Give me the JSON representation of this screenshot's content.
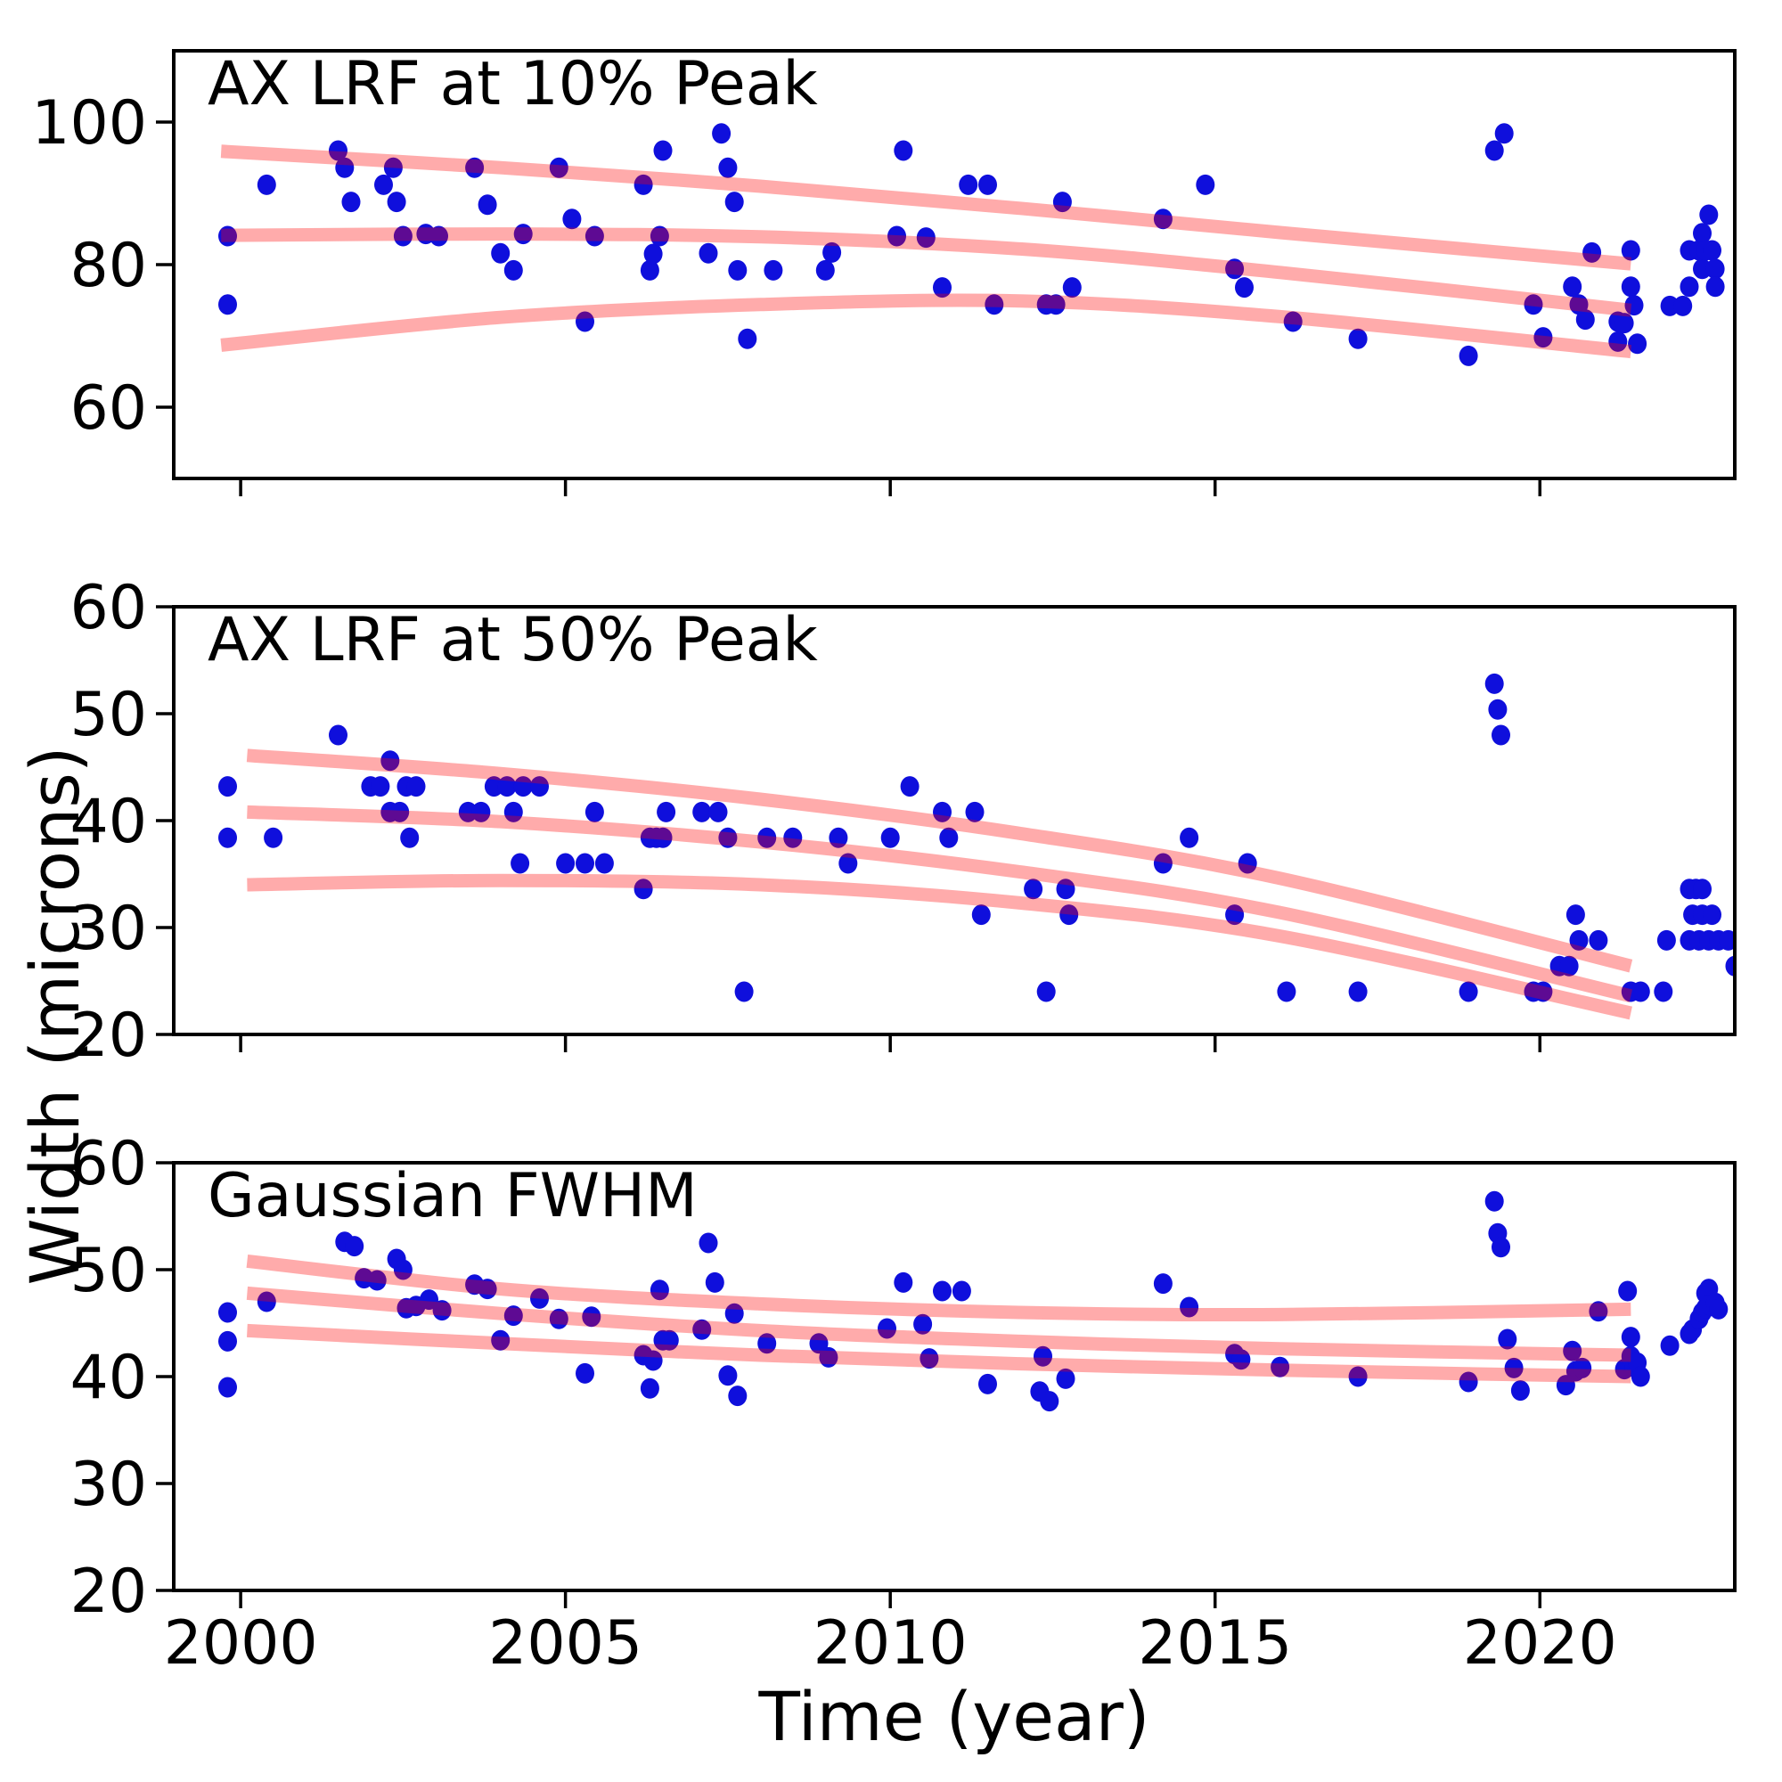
{
  "figure": {
    "background": "#ffffff",
    "dot_color": "#0f0fdc",
    "fit_line_color": "#ff0000",
    "fit_line_opacity": 0.33,
    "title_color": "#1414d6",
    "axis_color": "#000000"
  },
  "xlabel": "Time (year)",
  "ylabel": "Width (microns)",
  "x_ticks": [
    2000,
    2005,
    2010,
    2015,
    2020
  ],
  "chart_data": [
    {
      "type": "scatter",
      "title": "AX LRF at 10% Peak",
      "xlim": [
        1998.97,
        2023.0
      ],
      "ylim": [
        50,
        110
      ],
      "yticks": [
        60,
        80,
        100
      ],
      "grid": false,
      "points": [
        [
          1999.8,
          84
        ],
        [
          1999.8,
          74.4
        ],
        [
          2000.4,
          91.2
        ],
        [
          2001.5,
          96
        ],
        [
          2001.6,
          93.6
        ],
        [
          2001.7,
          88.8
        ],
        [
          2002.2,
          91.2
        ],
        [
          2002.35,
          93.6
        ],
        [
          2002.4,
          88.8
        ],
        [
          2002.5,
          84
        ],
        [
          2002.85,
          84.3
        ],
        [
          2003.05,
          84
        ],
        [
          2003.6,
          93.6
        ],
        [
          2003.8,
          88.4
        ],
        [
          2004.0,
          81.6
        ],
        [
          2004.2,
          79.2
        ],
        [
          2004.35,
          84.3
        ],
        [
          2004.9,
          93.6
        ],
        [
          2005.1,
          86.4
        ],
        [
          2005.3,
          72
        ],
        [
          2005.45,
          84
        ],
        [
          2006.2,
          91.2
        ],
        [
          2006.3,
          79.2
        ],
        [
          2006.35,
          81.5
        ],
        [
          2006.45,
          84
        ],
        [
          2006.5,
          96
        ],
        [
          2007.2,
          81.6
        ],
        [
          2007.4,
          98.4
        ],
        [
          2007.5,
          93.6
        ],
        [
          2007.6,
          88.8
        ],
        [
          2007.65,
          79.2
        ],
        [
          2007.8,
          69.6
        ],
        [
          2008.2,
          79.2
        ],
        [
          2009.0,
          79.2
        ],
        [
          2009.1,
          81.7
        ],
        [
          2010.1,
          84
        ],
        [
          2010.2,
          96
        ],
        [
          2010.55,
          83.8
        ],
        [
          2010.8,
          76.8
        ],
        [
          2011.2,
          91.2
        ],
        [
          2011.5,
          91.2
        ],
        [
          2011.6,
          74.4
        ],
        [
          2012.4,
          74.4
        ],
        [
          2012.55,
          74.4
        ],
        [
          2012.65,
          88.8
        ],
        [
          2012.8,
          76.8
        ],
        [
          2014.2,
          86.4
        ],
        [
          2014.85,
          91.2
        ],
        [
          2015.3,
          79.4
        ],
        [
          2015.45,
          76.8
        ],
        [
          2016.2,
          72
        ],
        [
          2017.2,
          69.6
        ],
        [
          2018.9,
          67.2
        ],
        [
          2019.3,
          96
        ],
        [
          2019.45,
          98.4
        ],
        [
          2019.9,
          74.4
        ],
        [
          2020.05,
          69.8
        ],
        [
          2020.5,
          76.9
        ],
        [
          2020.6,
          74.4
        ],
        [
          2020.7,
          72.3
        ],
        [
          2020.8,
          81.7
        ],
        [
          2021.2,
          72
        ],
        [
          2021.2,
          69.2
        ],
        [
          2021.3,
          71.8
        ],
        [
          2021.4,
          82
        ],
        [
          2021.4,
          76.9
        ],
        [
          2021.45,
          74.3
        ],
        [
          2021.5,
          68.9
        ],
        [
          2022.0,
          74.2
        ],
        [
          2022.2,
          74.2
        ],
        [
          2022.3,
          76.9
        ],
        [
          2022.3,
          82
        ],
        [
          2022.45,
          82
        ],
        [
          2022.5,
          79.4
        ],
        [
          2022.5,
          84.4
        ],
        [
          2022.55,
          82
        ],
        [
          2022.6,
          87
        ],
        [
          2022.65,
          82
        ],
        [
          2022.7,
          79.4
        ],
        [
          2022.7,
          76.9
        ]
      ],
      "fit_lines": [
        {
          "name": "upper",
          "points": [
            [
              1999.7,
              95.9
            ],
            [
              2004,
              93.6
            ],
            [
              2008,
              91.0
            ],
            [
              2012,
              87.9
            ],
            [
              2016,
              84.5
            ],
            [
              2021.4,
              80.1
            ]
          ]
        },
        {
          "name": "middle",
          "points": [
            [
              1999.7,
              84.1
            ],
            [
              2004,
              84.3
            ],
            [
              2008,
              83.9
            ],
            [
              2012,
              82.2
            ],
            [
              2016,
              78.9
            ],
            [
              2021.4,
              73.6
            ]
          ]
        },
        {
          "name": "lower",
          "points": [
            [
              1999.7,
              68.7
            ],
            [
              2004,
              72.6
            ],
            [
              2008,
              74.4
            ],
            [
              2012,
              74.9
            ],
            [
              2016,
              72.7
            ],
            [
              2021.4,
              67.8
            ]
          ]
        }
      ]
    },
    {
      "type": "scatter",
      "title": "AX LRF at 50% Peak",
      "xlim": [
        1998.97,
        2023.0
      ],
      "ylim": [
        20,
        60
      ],
      "yticks": [
        20,
        30,
        40,
        50,
        60
      ],
      "grid": false,
      "points": [
        [
          1999.8,
          43.2
        ],
        [
          1999.8,
          38.4
        ],
        [
          2000.5,
          38.4
        ],
        [
          2001.5,
          48
        ],
        [
          2002.0,
          43.2
        ],
        [
          2002.15,
          43.2
        ],
        [
          2002.3,
          45.6
        ],
        [
          2002.3,
          40.8
        ],
        [
          2002.45,
          40.8
        ],
        [
          2002.55,
          43.2
        ],
        [
          2002.7,
          43.2
        ],
        [
          2002.6,
          38.4
        ],
        [
          2003.5,
          40.8
        ],
        [
          2003.7,
          40.8
        ],
        [
          2003.9,
          43.2
        ],
        [
          2004.1,
          43.2
        ],
        [
          2004.2,
          40.8
        ],
        [
          2004.35,
          43.2
        ],
        [
          2004.3,
          36
        ],
        [
          2004.6,
          43.2
        ],
        [
          2005.0,
          36
        ],
        [
          2005.3,
          36
        ],
        [
          2005.45,
          40.8
        ],
        [
          2005.6,
          36
        ],
        [
          2006.2,
          33.6
        ],
        [
          2006.3,
          38.4
        ],
        [
          2006.4,
          38.4
        ],
        [
          2006.5,
          38.4
        ],
        [
          2006.55,
          40.8
        ],
        [
          2007.1,
          40.8
        ],
        [
          2007.35,
          40.8
        ],
        [
          2007.5,
          38.4
        ],
        [
          2007.75,
          24
        ],
        [
          2008.1,
          38.4
        ],
        [
          2008.5,
          38.4
        ],
        [
          2009.2,
          38.4
        ],
        [
          2009.35,
          36
        ],
        [
          2010.0,
          38.4
        ],
        [
          2010.3,
          43.2
        ],
        [
          2010.8,
          40.8
        ],
        [
          2010.9,
          38.4
        ],
        [
          2011.3,
          40.8
        ],
        [
          2011.4,
          31.2
        ],
        [
          2012.2,
          33.6
        ],
        [
          2012.4,
          24
        ],
        [
          2012.7,
          33.6
        ],
        [
          2012.75,
          31.2
        ],
        [
          2014.2,
          36
        ],
        [
          2014.6,
          38.4
        ],
        [
          2015.3,
          31.2
        ],
        [
          2015.5,
          36
        ],
        [
          2016.1,
          24
        ],
        [
          2017.2,
          24
        ],
        [
          2018.9,
          24
        ],
        [
          2019.3,
          52.8
        ],
        [
          2019.35,
          50.4
        ],
        [
          2019.4,
          48
        ],
        [
          2019.9,
          24
        ],
        [
          2020.05,
          24
        ],
        [
          2020.3,
          26.4
        ],
        [
          2020.45,
          26.4
        ],
        [
          2020.55,
          31.2
        ],
        [
          2020.6,
          28.8
        ],
        [
          2020.9,
          28.8
        ],
        [
          2021.4,
          24
        ],
        [
          2021.55,
          24
        ],
        [
          2021.9,
          24
        ],
        [
          2021.95,
          28.8
        ],
        [
          2022.3,
          33.6
        ],
        [
          2022.4,
          33.6
        ],
        [
          2022.5,
          33.6
        ],
        [
          2022.35,
          31.2
        ],
        [
          2022.5,
          31.2
        ],
        [
          2022.65,
          31.2
        ],
        [
          2022.3,
          28.8
        ],
        [
          2022.45,
          28.8
        ],
        [
          2022.6,
          28.8
        ],
        [
          2022.75,
          28.8
        ],
        [
          2022.9,
          28.8
        ],
        [
          2023.0,
          26.4
        ]
      ],
      "fit_lines": [
        {
          "name": "upper",
          "points": [
            [
              2000.1,
              46.1
            ],
            [
              2004,
              44.4
            ],
            [
              2008,
              42.0
            ],
            [
              2012,
              38.8
            ],
            [
              2016,
              34.6
            ],
            [
              2021.4,
              26.4
            ]
          ]
        },
        {
          "name": "middle",
          "points": [
            [
              2000.1,
              40.8
            ],
            [
              2004,
              39.9
            ],
            [
              2008,
              38.0
            ],
            [
              2012,
              35.2
            ],
            [
              2016,
              31.4
            ],
            [
              2021.4,
              23.6
            ]
          ]
        },
        {
          "name": "lower",
          "points": [
            [
              2000.1,
              34.0
            ],
            [
              2004,
              34.4
            ],
            [
              2008,
              34.0
            ],
            [
              2012,
              32.3
            ],
            [
              2016,
              29.2
            ],
            [
              2021.4,
              22.0
            ]
          ]
        }
      ]
    },
    {
      "type": "scatter",
      "title": "Gaussian FWHM",
      "xlim": [
        1998.97,
        2023.0
      ],
      "ylim": [
        20,
        60
      ],
      "yticks": [
        20,
        30,
        40,
        50,
        60
      ],
      "grid": false,
      "points": [
        [
          1999.8,
          46
        ],
        [
          1999.8,
          43.3
        ],
        [
          1999.8,
          39
        ],
        [
          2000.4,
          47
        ],
        [
          2001.6,
          52.6
        ],
        [
          2001.75,
          52.2
        ],
        [
          2001.9,
          49.2
        ],
        [
          2002.1,
          49
        ],
        [
          2002.4,
          51
        ],
        [
          2002.5,
          50
        ],
        [
          2002.55,
          46.4
        ],
        [
          2002.7,
          46.6
        ],
        [
          2002.9,
          47.2
        ],
        [
          2003.1,
          46.2
        ],
        [
          2003.6,
          48.6
        ],
        [
          2003.8,
          48.2
        ],
        [
          2004.0,
          43.4
        ],
        [
          2004.2,
          45.7
        ],
        [
          2004.6,
          47.3
        ],
        [
          2004.9,
          45.4
        ],
        [
          2005.4,
          45.6
        ],
        [
          2005.3,
          40.3
        ],
        [
          2006.2,
          42
        ],
        [
          2006.3,
          38.9
        ],
        [
          2006.35,
          41.5
        ],
        [
          2006.45,
          48.1
        ],
        [
          2006.5,
          43.4
        ],
        [
          2006.6,
          43.4
        ],
        [
          2007.1,
          44.4
        ],
        [
          2007.2,
          52.5
        ],
        [
          2007.3,
          48.8
        ],
        [
          2007.5,
          40.1
        ],
        [
          2007.6,
          45.9
        ],
        [
          2007.65,
          38.2
        ],
        [
          2008.1,
          43.1
        ],
        [
          2008.9,
          43.1
        ],
        [
          2009.05,
          41.8
        ],
        [
          2009.95,
          44.5
        ],
        [
          2010.2,
          48.8
        ],
        [
          2010.5,
          44.9
        ],
        [
          2010.6,
          41.7
        ],
        [
          2010.8,
          48
        ],
        [
          2011.1,
          48
        ],
        [
          2011.5,
          39.3
        ],
        [
          2012.3,
          38.6
        ],
        [
          2012.35,
          41.9
        ],
        [
          2012.45,
          37.7
        ],
        [
          2012.7,
          39.8
        ],
        [
          2014.2,
          48.7
        ],
        [
          2014.6,
          46.5
        ],
        [
          2015.3,
          42.1
        ],
        [
          2015.4,
          41.6
        ],
        [
          2016.0,
          40.9
        ],
        [
          2017.2,
          40
        ],
        [
          2018.9,
          39.5
        ],
        [
          2019.3,
          56.4
        ],
        [
          2019.35,
          53.4
        ],
        [
          2019.4,
          52.1
        ],
        [
          2019.5,
          43.5
        ],
        [
          2019.6,
          40.8
        ],
        [
          2019.7,
          38.7
        ],
        [
          2020.4,
          39.2
        ],
        [
          2020.5,
          42.4
        ],
        [
          2020.55,
          40.5
        ],
        [
          2020.65,
          40.8
        ],
        [
          2020.9,
          46.1
        ],
        [
          2021.35,
          48
        ],
        [
          2021.3,
          40.7
        ],
        [
          2021.4,
          43.7
        ],
        [
          2021.4,
          41.9
        ],
        [
          2021.45,
          40.9
        ],
        [
          2021.5,
          41.3
        ],
        [
          2021.55,
          40
        ],
        [
          2022.0,
          42.9
        ],
        [
          2022.3,
          44
        ],
        [
          2022.35,
          44.4
        ],
        [
          2022.45,
          45.4
        ],
        [
          2022.5,
          46
        ],
        [
          2022.55,
          46.4
        ],
        [
          2022.55,
          47.8
        ],
        [
          2022.6,
          48.2
        ],
        [
          2022.6,
          46.7
        ],
        [
          2022.7,
          46.9
        ],
        [
          2022.75,
          46.3
        ]
      ],
      "fit_lines": [
        {
          "name": "upper",
          "points": [
            [
              2000.1,
              50.8
            ],
            [
              2004,
              48.2
            ],
            [
              2008,
              46.8
            ],
            [
              2012,
              46.0
            ],
            [
              2016,
              45.8
            ],
            [
              2021.4,
              46.3
            ]
          ]
        },
        {
          "name": "middle",
          "points": [
            [
              2000.1,
              47.8
            ],
            [
              2004,
              45.9
            ],
            [
              2008,
              44.3
            ],
            [
              2012,
              43.3
            ],
            [
              2016,
              42.6
            ],
            [
              2021.4,
              42.0
            ]
          ]
        },
        {
          "name": "lower",
          "points": [
            [
              2000.1,
              44.3
            ],
            [
              2004,
              43.1
            ],
            [
              2008,
              42.0
            ],
            [
              2012,
              41.2
            ],
            [
              2016,
              40.6
            ],
            [
              2021.4,
              40.0
            ]
          ]
        }
      ]
    }
  ]
}
